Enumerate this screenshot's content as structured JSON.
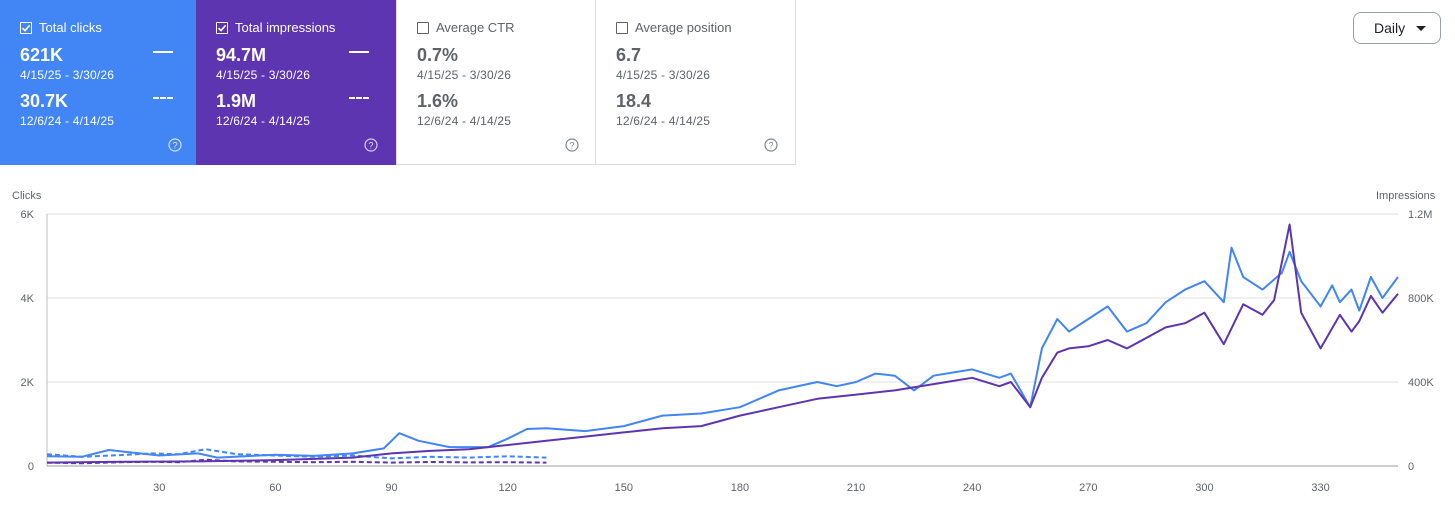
{
  "metrics": [
    {
      "label": "Total clicks",
      "checked": true,
      "current": "621K",
      "current_range": "4/15/25 - 3/30/26",
      "previous": "30.7K",
      "previous_range": "12/6/24 - 4/14/25",
      "color": "#4285f4"
    },
    {
      "label": "Total impressions",
      "checked": true,
      "current": "94.7M",
      "current_range": "4/15/25 - 3/30/26",
      "previous": "1.9M",
      "previous_range": "12/6/24 - 4/14/25",
      "color": "#5e35b1"
    },
    {
      "label": "Average CTR",
      "checked": false,
      "current": "0.7%",
      "current_range": "4/15/25 - 3/30/26",
      "previous": "1.6%",
      "previous_range": "12/6/24 - 4/14/25"
    },
    {
      "label": "Average position",
      "checked": false,
      "current": "6.7",
      "current_range": "4/15/25 - 3/30/26",
      "previous": "18.4",
      "previous_range": "12/6/24 - 4/14/25"
    }
  ],
  "icons": {
    "checkbox": "checkbox-icon",
    "help": "help-circle-icon",
    "dropdown": "caret-down-icon"
  },
  "granularity": {
    "label": "Daily"
  },
  "chart_data": {
    "type": "line",
    "left_axis_title": "Clicks",
    "right_axis_title": "Impressions",
    "x_ticks": [
      "30",
      "60",
      "90",
      "120",
      "150",
      "180",
      "210",
      "240",
      "270",
      "300",
      "330"
    ],
    "x_tick_values": [
      30,
      60,
      90,
      120,
      150,
      180,
      210,
      240,
      270,
      300,
      330
    ],
    "xlim": [
      1,
      350
    ],
    "y_left_ticks": [
      "0",
      "2K",
      "4K",
      "6K"
    ],
    "y_left_values": [
      0,
      2000,
      4000,
      6000
    ],
    "y_left_lim": [
      0,
      6000
    ],
    "y_right_ticks": [
      "0",
      "400K",
      "800K",
      "1.2M"
    ],
    "y_right_values": [
      0,
      400000,
      800000,
      1200000
    ],
    "y_right_lim": [
      0,
      1200000
    ],
    "grid": true,
    "series": [
      {
        "name": "Total clicks",
        "axis": "left",
        "color": "#4285f4",
        "style": "solid",
        "points": [
          [
            1,
            230
          ],
          [
            10,
            220
          ],
          [
            17,
            380
          ],
          [
            25,
            300
          ],
          [
            30,
            250
          ],
          [
            40,
            300
          ],
          [
            45,
            200
          ],
          [
            60,
            270
          ],
          [
            70,
            240
          ],
          [
            80,
            300
          ],
          [
            88,
            420
          ],
          [
            92,
            780
          ],
          [
            97,
            600
          ],
          [
            105,
            450
          ],
          [
            115,
            450
          ],
          [
            120,
            650
          ],
          [
            125,
            880
          ],
          [
            130,
            900
          ],
          [
            140,
            830
          ],
          [
            150,
            950
          ],
          [
            160,
            1200
          ],
          [
            170,
            1250
          ],
          [
            180,
            1400
          ],
          [
            190,
            1800
          ],
          [
            200,
            2000
          ],
          [
            205,
            1900
          ],
          [
            210,
            2000
          ],
          [
            215,
            2200
          ],
          [
            220,
            2150
          ],
          [
            225,
            1800
          ],
          [
            230,
            2150
          ],
          [
            240,
            2300
          ],
          [
            247,
            2100
          ],
          [
            250,
            2200
          ],
          [
            255,
            1400
          ],
          [
            258,
            2800
          ],
          [
            262,
            3500
          ],
          [
            265,
            3200
          ],
          [
            270,
            3500
          ],
          [
            275,
            3800
          ],
          [
            280,
            3200
          ],
          [
            285,
            3400
          ],
          [
            290,
            3900
          ],
          [
            295,
            4200
          ],
          [
            300,
            4400
          ],
          [
            305,
            3900
          ],
          [
            307,
            5200
          ],
          [
            310,
            4500
          ],
          [
            315,
            4200
          ],
          [
            320,
            4600
          ],
          [
            322,
            5100
          ],
          [
            325,
            4400
          ],
          [
            330,
            3800
          ],
          [
            333,
            4300
          ],
          [
            335,
            3900
          ],
          [
            338,
            4200
          ],
          [
            340,
            3700
          ],
          [
            343,
            4500
          ],
          [
            346,
            4000
          ],
          [
            350,
            4500
          ]
        ]
      },
      {
        "name": "Total impressions",
        "axis": "right",
        "color": "#5e35b1",
        "style": "solid",
        "points": [
          [
            1,
            16000
          ],
          [
            20,
            20000
          ],
          [
            40,
            22000
          ],
          [
            60,
            28000
          ],
          [
            80,
            40000
          ],
          [
            90,
            60000
          ],
          [
            100,
            72000
          ],
          [
            110,
            80000
          ],
          [
            120,
            100000
          ],
          [
            130,
            120000
          ],
          [
            140,
            140000
          ],
          [
            150,
            160000
          ],
          [
            160,
            180000
          ],
          [
            170,
            190000
          ],
          [
            180,
            240000
          ],
          [
            190,
            280000
          ],
          [
            200,
            320000
          ],
          [
            210,
            340000
          ],
          [
            220,
            360000
          ],
          [
            230,
            390000
          ],
          [
            240,
            420000
          ],
          [
            247,
            380000
          ],
          [
            250,
            400000
          ],
          [
            255,
            280000
          ],
          [
            258,
            420000
          ],
          [
            262,
            540000
          ],
          [
            265,
            560000
          ],
          [
            270,
            570000
          ],
          [
            275,
            600000
          ],
          [
            280,
            560000
          ],
          [
            285,
            610000
          ],
          [
            290,
            660000
          ],
          [
            295,
            680000
          ],
          [
            300,
            730000
          ],
          [
            305,
            580000
          ],
          [
            310,
            770000
          ],
          [
            315,
            720000
          ],
          [
            318,
            790000
          ],
          [
            322,
            1150000
          ],
          [
            325,
            730000
          ],
          [
            330,
            560000
          ],
          [
            335,
            720000
          ],
          [
            338,
            640000
          ],
          [
            340,
            690000
          ],
          [
            343,
            810000
          ],
          [
            346,
            730000
          ],
          [
            350,
            820000
          ]
        ]
      },
      {
        "name": "Total clicks (12/6/24 - 4/14/25)",
        "axis": "left",
        "color": "#4285f4",
        "style": "dashed",
        "points": [
          [
            1,
            280
          ],
          [
            10,
            220
          ],
          [
            20,
            260
          ],
          [
            28,
            300
          ],
          [
            35,
            280
          ],
          [
            42,
            400
          ],
          [
            50,
            280
          ],
          [
            60,
            250
          ],
          [
            70,
            220
          ],
          [
            80,
            250
          ],
          [
            90,
            180
          ],
          [
            100,
            220
          ],
          [
            110,
            200
          ],
          [
            120,
            230
          ],
          [
            130,
            200
          ]
        ]
      },
      {
        "name": "Total impressions (12/6/24 - 4/14/25)",
        "axis": "right",
        "color": "#5e35b1",
        "style": "dashed",
        "points": [
          [
            1,
            16000
          ],
          [
            10,
            13000
          ],
          [
            20,
            18000
          ],
          [
            28,
            20000
          ],
          [
            35,
            18000
          ],
          [
            42,
            30000
          ],
          [
            50,
            22000
          ],
          [
            60,
            20000
          ],
          [
            70,
            18000
          ],
          [
            80,
            20000
          ],
          [
            90,
            16000
          ],
          [
            100,
            19000
          ],
          [
            110,
            17000
          ],
          [
            120,
            18000
          ],
          [
            130,
            16000
          ]
        ]
      }
    ]
  }
}
